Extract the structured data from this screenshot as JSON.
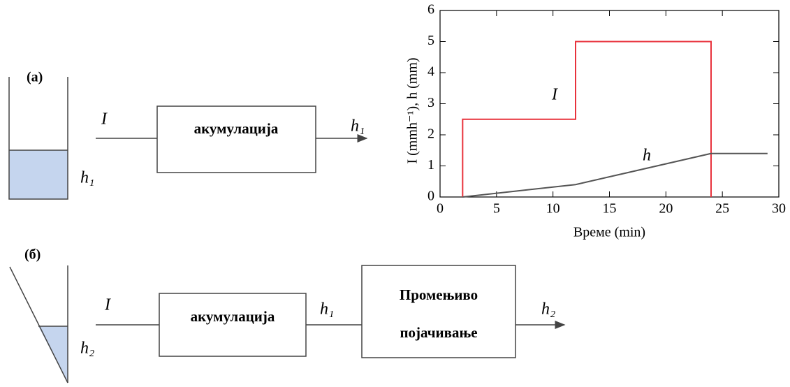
{
  "diagram_a": {
    "label": "(a)",
    "input": "I",
    "block": "акумулација",
    "output": "h₁",
    "tank_level": "h₁"
  },
  "diagram_b": {
    "label": "(б)",
    "input": "I",
    "block_1": "акумулација",
    "middle": "h₁",
    "block_2": [
      "Промењиво",
      "појачивање"
    ],
    "output": "h₂",
    "tank_level": "h₂"
  },
  "chart_data": {
    "type": "line",
    "xlabel": "Време (min)",
    "ylabel": "I (mmh⁻¹), h (mm)",
    "xlim": [
      0,
      30
    ],
    "ylim": [
      0,
      6
    ],
    "xticks": [
      0,
      5,
      10,
      15,
      20,
      25,
      30
    ],
    "yticks": [
      0,
      1,
      2,
      3,
      4,
      5,
      6
    ],
    "series": [
      {
        "name": "I",
        "color": "#e8323c",
        "x": [
          2,
          2,
          12,
          12,
          24,
          24
        ],
        "values": [
          0,
          2.5,
          2.5,
          5,
          5,
          0
        ]
      },
      {
        "name": "h",
        "color": "#555555",
        "x": [
          2,
          12,
          24,
          29
        ],
        "values": [
          0,
          0.4,
          1.4,
          1.4
        ]
      }
    ]
  }
}
